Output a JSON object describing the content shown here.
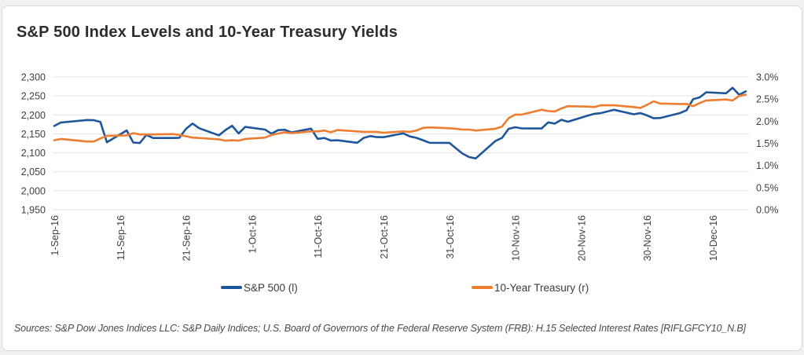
{
  "title": "S&P 500 Index Levels and 10-Year Treasury Yields",
  "sources": "Sources: S&P Dow Jones Indices LLC: S&P Daily Indices; U.S. Board of Governors of the Federal Reserve System (FRB): H.15 Selected Interest Rates [RIFLGFCY10_N.B]",
  "legend": [
    {
      "label": "S&P 500 (l)",
      "color": "#1e569b"
    },
    {
      "label": "10-Year Treasury (r)",
      "color": "#ed7d31"
    }
  ],
  "chart_data": {
    "type": "line",
    "title": "S&P 500 Index Levels and 10-Year Treasury Yields",
    "grid_color": "#e3e3e3",
    "tick_text_color": "#404040",
    "x_start": "2016-09-01",
    "left_axis": {
      "min": 1950,
      "max": 2300,
      "values": [
        2300,
        2250,
        2200,
        2150,
        2100,
        2050,
        2000,
        1950
      ],
      "labels": [
        "2,300",
        "2,250",
        "2,200",
        "2,150",
        "2,100",
        "2,050",
        "2,000",
        "1,950"
      ]
    },
    "right_axis": {
      "min": 0.0,
      "max": 3.0,
      "values": [
        3.0,
        2.5,
        2.0,
        1.5,
        1.0,
        0.5,
        0.0
      ],
      "labels": [
        "3.0%",
        "2.5%",
        "2.0%",
        "1.5%",
        "1.0%",
        "0.5%",
        "0.0%"
      ]
    },
    "x_ticks": [
      {
        "date": "2016-09-01",
        "label": "1-Sep-16"
      },
      {
        "date": "2016-09-11",
        "label": "11-Sep-16"
      },
      {
        "date": "2016-09-21",
        "label": "21-Sep-16"
      },
      {
        "date": "2016-10-01",
        "label": "1-Oct-16"
      },
      {
        "date": "2016-10-11",
        "label": "11-Oct-16"
      },
      {
        "date": "2016-10-21",
        "label": "21-Oct-16"
      },
      {
        "date": "2016-10-31",
        "label": "31-Oct-16"
      },
      {
        "date": "2016-11-10",
        "label": "10-Nov-16"
      },
      {
        "date": "2016-11-20",
        "label": "20-Nov-16"
      },
      {
        "date": "2016-11-30",
        "label": "30-Nov-16"
      },
      {
        "date": "2016-12-10",
        "label": "10-Dec-16"
      }
    ],
    "dates": [
      "2016-09-01",
      "2016-09-02",
      "2016-09-06",
      "2016-09-07",
      "2016-09-08",
      "2016-09-09",
      "2016-09-12",
      "2016-09-13",
      "2016-09-14",
      "2016-09-15",
      "2016-09-16",
      "2016-09-19",
      "2016-09-20",
      "2016-09-21",
      "2016-09-22",
      "2016-09-23",
      "2016-09-26",
      "2016-09-27",
      "2016-09-28",
      "2016-09-29",
      "2016-09-30",
      "2016-10-03",
      "2016-10-04",
      "2016-10-05",
      "2016-10-06",
      "2016-10-07",
      "2016-10-10",
      "2016-10-11",
      "2016-10-12",
      "2016-10-13",
      "2016-10-14",
      "2016-10-17",
      "2016-10-18",
      "2016-10-19",
      "2016-10-20",
      "2016-10-21",
      "2016-10-24",
      "2016-10-25",
      "2016-10-26",
      "2016-10-27",
      "2016-10-28",
      "2016-10-31",
      "2016-11-01",
      "2016-11-02",
      "2016-11-03",
      "2016-11-04",
      "2016-11-07",
      "2016-11-08",
      "2016-11-09",
      "2016-11-10",
      "2016-11-11",
      "2016-11-14",
      "2016-11-15",
      "2016-11-16",
      "2016-11-17",
      "2016-11-18",
      "2016-11-21",
      "2016-11-22",
      "2016-11-23",
      "2016-11-25",
      "2016-11-28",
      "2016-11-29",
      "2016-11-30",
      "2016-12-01",
      "2016-12-02",
      "2016-12-05",
      "2016-12-06",
      "2016-12-07",
      "2016-12-08",
      "2016-12-09",
      "2016-12-12",
      "2016-12-13",
      "2016-12-14",
      "2016-12-15"
    ],
    "series": [
      {
        "name": "S&P 500 (l)",
        "axis": "left",
        "color": "#1e569b",
        "values": [
          2170.86,
          2179.98,
          2186.48,
          2186.16,
          2181.3,
          2127.81,
          2159.04,
          2127.02,
          2125.77,
          2147.26,
          2139.16,
          2139.12,
          2139.76,
          2163.12,
          2177.18,
          2164.69,
          2146.1,
          2159.93,
          2171.37,
          2151.13,
          2168.27,
          2161.2,
          2150.49,
          2159.73,
          2160.77,
          2153.74,
          2163.66,
          2136.73,
          2139.18,
          2132.55,
          2132.98,
          2126.5,
          2139.6,
          2144.29,
          2141.34,
          2141.16,
          2151.33,
          2143.16,
          2139.43,
          2133.04,
          2126.41,
          2126.15,
          2111.72,
          2097.94,
          2088.66,
          2085.18,
          2131.52,
          2139.56,
          2163.26,
          2167.48,
          2164.45,
          2164.2,
          2180.39,
          2176.94,
          2187.12,
          2181.9,
          2198.18,
          2202.94,
          2204.72,
          2213.35,
          2201.72,
          2204.66,
          2198.81,
          2191.08,
          2191.95,
          2204.71,
          2212.23,
          2241.35,
          2246.19,
          2259.53,
          2256.96,
          2271.72,
          2253.28,
          2262.03
        ]
      },
      {
        "name": "10-Year Treasury (r)",
        "axis": "right",
        "color": "#ed7d31",
        "values": [
          1.57,
          1.6,
          1.54,
          1.54,
          1.61,
          1.67,
          1.68,
          1.73,
          1.7,
          1.7,
          1.7,
          1.71,
          1.69,
          1.66,
          1.63,
          1.62,
          1.59,
          1.56,
          1.57,
          1.56,
          1.6,
          1.63,
          1.69,
          1.72,
          1.75,
          1.73,
          1.77,
          1.77,
          1.79,
          1.75,
          1.8,
          1.77,
          1.76,
          1.76,
          1.76,
          1.74,
          1.77,
          1.76,
          1.79,
          1.85,
          1.86,
          1.84,
          1.83,
          1.81,
          1.81,
          1.79,
          1.83,
          1.88,
          2.07,
          2.15,
          2.15,
          2.26,
          2.23,
          2.22,
          2.29,
          2.34,
          2.33,
          2.32,
          2.36,
          2.36,
          2.32,
          2.3,
          2.37,
          2.45,
          2.4,
          2.39,
          2.39,
          2.34,
          2.41,
          2.47,
          2.49,
          2.47,
          2.57,
          2.6
        ]
      }
    ]
  }
}
